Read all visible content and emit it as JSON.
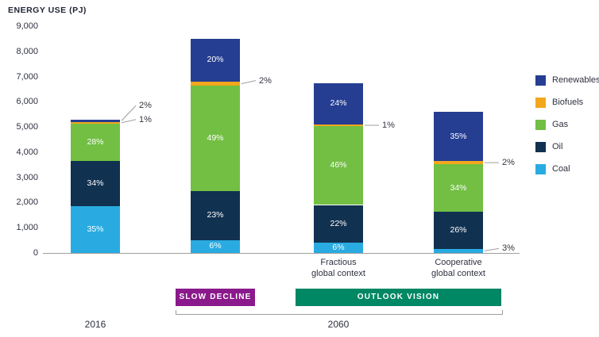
{
  "title": "ENERGY USE (PJ)",
  "badges": {
    "slow_decline": "SLOW DECLINE",
    "outlook_vision": "OUTLOOK VISION"
  },
  "footer": {
    "year_left": "2016",
    "year_right": "2060"
  },
  "chart_data": {
    "type": "bar",
    "stacked": true,
    "title": "ENERGY USE (PJ)",
    "ylabel": "ENERGY USE (PJ)",
    "xlabel": "",
    "ylim": [
      0,
      9000
    ],
    "grid": false,
    "legend_position": "right",
    "yticks": [
      "0",
      "1,000",
      "2,000",
      "3,000",
      "4,000",
      "5,000",
      "6,000",
      "7,000",
      "8,000",
      "9,000"
    ],
    "legend": [
      "Renewables",
      "Biofuels",
      "Gas",
      "Oil",
      "Coal"
    ],
    "colors": {
      "Renewables": "#253e92",
      "Biofuels": "#f2a71c",
      "Gas": "#72bf44",
      "Oil": "#113150",
      "Coal": "#29abe2"
    },
    "bars": [
      {
        "name": "2016",
        "group": "2016",
        "total_pj": 5300,
        "segments": [
          {
            "name": "Coal",
            "pct": 35,
            "label": "35%",
            "placement": "inside"
          },
          {
            "name": "Oil",
            "pct": 34,
            "label": "34%",
            "placement": "inside"
          },
          {
            "name": "Gas",
            "pct": 28,
            "label": "28%",
            "placement": "inside"
          },
          {
            "name": "Biofuels",
            "pct": 1,
            "label": "1%",
            "placement": "callout",
            "dy": -4
          },
          {
            "name": "Renewables",
            "pct": 2,
            "label": "2%",
            "placement": "callout",
            "dy": -19
          }
        ]
      },
      {
        "name": "Slow decline",
        "group": "2060",
        "total_pj": 8500,
        "segments": [
          {
            "name": "Coal",
            "pct": 6,
            "label": "6%",
            "placement": "inside"
          },
          {
            "name": "Oil",
            "pct": 23,
            "label": "23%",
            "placement": "inside"
          },
          {
            "name": "Gas",
            "pct": 49,
            "label": "49%",
            "placement": "inside"
          },
          {
            "name": "Biofuels",
            "pct": 2,
            "label": "2%",
            "placement": "callout",
            "dy": -4
          },
          {
            "name": "Renewables",
            "pct": 20,
            "label": "20%",
            "placement": "inside"
          }
        ]
      },
      {
        "name": "Fractious global context",
        "group": "2060",
        "axis_label": [
          "Fractious",
          "global context"
        ],
        "total_pj": 6800,
        "segments": [
          {
            "name": "Coal",
            "pct": 6,
            "label": "6%",
            "placement": "inside"
          },
          {
            "name": "Oil",
            "pct": 22,
            "label": "22%",
            "placement": "inside"
          },
          {
            "name": "Gas",
            "pct": 46,
            "label": "46%",
            "placement": "inside"
          },
          {
            "name": "Biofuels",
            "pct": 1,
            "label": "1%",
            "placement": "callout",
            "dy": 0
          },
          {
            "name": "Renewables",
            "pct": 24,
            "label": "24%",
            "placement": "inside"
          }
        ]
      },
      {
        "name": "Cooperative global context",
        "group": "2060",
        "axis_label": [
          "Cooperative",
          "global context"
        ],
        "total_pj": 5600,
        "segments": [
          {
            "name": "Coal",
            "pct": 3,
            "label": "3%",
            "placement": "callout",
            "dy": -3
          },
          {
            "name": "Oil",
            "pct": 26,
            "label": "26%",
            "placement": "inside"
          },
          {
            "name": "Gas",
            "pct": 34,
            "label": "34%",
            "placement": "inside"
          },
          {
            "name": "Biofuels",
            "pct": 2,
            "label": "2%",
            "placement": "callout",
            "dy": 0
          },
          {
            "name": "Renewables",
            "pct": 35,
            "label": "35%",
            "placement": "inside"
          }
        ]
      }
    ]
  }
}
